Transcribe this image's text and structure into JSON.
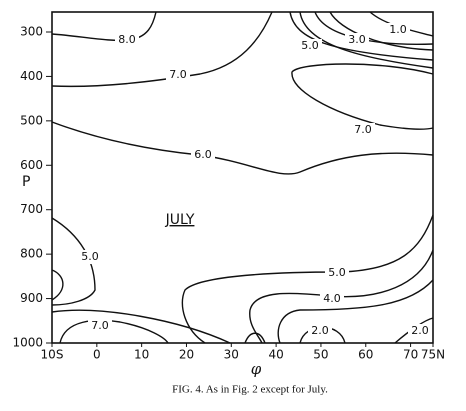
{
  "chart_data": {
    "type": "contour",
    "caption": "FIG. 4. As in Fig. 2 except for July.",
    "annotation": "JULY",
    "ylabel": "P",
    "xlabel": "φ",
    "xlim": [
      -10,
      75
    ],
    "xticks": [
      {
        "value": -10,
        "label": "10S"
      },
      0,
      10,
      20,
      30,
      40,
      50,
      60,
      70,
      {
        "value": 75,
        "label": "75N"
      }
    ],
    "ylim": [
      255,
      1000
    ],
    "y_inverted": true,
    "yticks": [
      300,
      400,
      500,
      600,
      700,
      800,
      900,
      1000
    ],
    "contour_labels": [
      {
        "value": 8,
        "label": "8.0"
      },
      {
        "value": 7,
        "label": "7.0"
      },
      {
        "value": 5,
        "label": "5.0"
      },
      {
        "value": 3,
        "label": "3.0"
      },
      {
        "value": 1,
        "label": "1.0"
      },
      {
        "value": 7,
        "label": "7.0"
      },
      {
        "value": 6,
        "label": "6.0"
      },
      {
        "value": 5,
        "label": "5.0"
      },
      {
        "value": 5,
        "label": "5.0"
      },
      {
        "value": 4,
        "label": "4.0"
      },
      {
        "value": 7,
        "label": "7.0"
      },
      {
        "value": 2,
        "label": "2.0"
      },
      {
        "value": 2,
        "label": "2.0"
      }
    ]
  }
}
